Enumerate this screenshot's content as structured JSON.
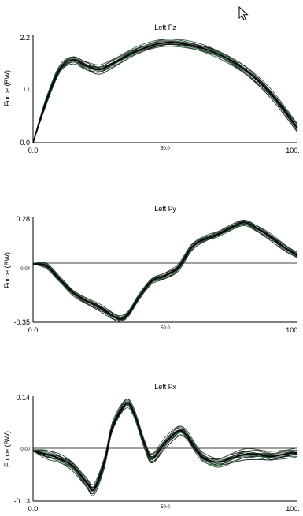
{
  "cursor_icon": "arrow-pointer-icon",
  "chart_data": [
    {
      "type": "line",
      "title": "Left Fz",
      "ylabel": "Force (BW)",
      "xlabel": "",
      "ylim": [
        0.0,
        2.2
      ],
      "xlim": [
        0,
        100
      ],
      "ytick_labels": [
        "2.2",
        "1.1",
        "0.0"
      ],
      "ytick_values": [
        2.2,
        1.1,
        0.0
      ],
      "xtick_labels": [
        "0.0",
        "50.0",
        "100."
      ],
      "xtick_values": [
        0,
        50,
        100
      ],
      "zero_line": false,
      "grid": false,
      "series": [
        {
          "x": [
            0,
            5,
            10,
            15,
            20,
            25,
            30,
            40,
            50,
            60,
            70,
            80,
            90,
            100
          ],
          "values": [
            0.0,
            0.85,
            1.5,
            1.7,
            1.58,
            1.5,
            1.62,
            1.9,
            2.05,
            2.0,
            1.82,
            1.5,
            1.0,
            0.3
          ]
        }
      ],
      "band": 0.08
    },
    {
      "type": "line",
      "title": "Left Fy",
      "ylabel": "Force (BW)",
      "xlabel": "",
      "ylim": [
        -0.35,
        0.28
      ],
      "xlim": [
        0,
        100
      ],
      "ytick_labels": [
        "0.28",
        "-0.04",
        "-0.35"
      ],
      "ytick_values": [
        0.28,
        -0.04,
        -0.35
      ],
      "xtick_labels": [
        "0.0",
        "50.0",
        "100."
      ],
      "xtick_values": [
        0,
        50,
        100
      ],
      "zero_line": true,
      "grid": false,
      "series": [
        {
          "x": [
            0,
            5,
            10,
            15,
            20,
            25,
            30,
            33,
            36,
            40,
            45,
            50,
            55,
            60,
            65,
            70,
            75,
            80,
            85,
            90,
            95,
            100
          ],
          "values": [
            0.0,
            -0.01,
            -0.09,
            -0.17,
            -0.22,
            -0.26,
            -0.31,
            -0.33,
            -0.3,
            -0.2,
            -0.1,
            -0.07,
            -0.02,
            0.1,
            0.15,
            0.18,
            0.22,
            0.25,
            0.21,
            0.16,
            0.1,
            0.05
          ]
        }
      ],
      "band": 0.018
    },
    {
      "type": "line",
      "title": "Left Fx",
      "ylabel": "Force (BW)",
      "xlabel": "",
      "ylim": [
        -0.13,
        0.14
      ],
      "xlim": [
        0,
        100
      ],
      "ytick_labels": [
        "0.14",
        "0.00",
        "-0.13"
      ],
      "ytick_values": [
        0.14,
        0.0,
        -0.13
      ],
      "xtick_labels": [
        "0.0",
        "50.0",
        "100."
      ],
      "xtick_values": [
        0,
        50,
        100
      ],
      "zero_line": true,
      "grid": false,
      "series": [
        {
          "x": [
            0,
            5,
            10,
            15,
            20,
            23,
            27,
            30,
            35,
            38,
            42,
            45,
            50,
            55,
            58,
            62,
            65,
            70,
            75,
            80,
            85,
            90,
            95,
            100
          ],
          "values": [
            0.0,
            -0.01,
            -0.02,
            -0.04,
            -0.08,
            -0.1,
            -0.03,
            0.06,
            0.12,
            0.1,
            0.02,
            -0.02,
            0.02,
            0.05,
            0.04,
            0.0,
            -0.02,
            -0.03,
            -0.02,
            -0.01,
            -0.01,
            -0.015,
            -0.01,
            -0.005
          ]
        }
      ],
      "band": 0.012
    }
  ]
}
